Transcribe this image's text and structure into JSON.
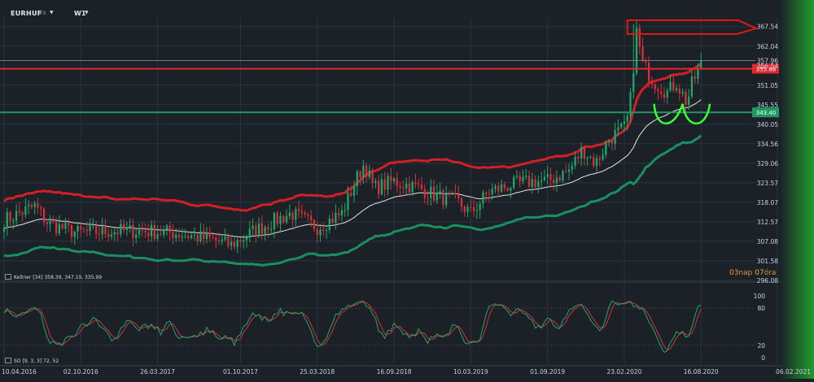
{
  "header": {
    "symbol": "EURHUF",
    "exchange": "FX",
    "timeframe": "W1"
  },
  "legends": {
    "keltner": "Keltner [34] 358.39, 347.19, 335.99",
    "stochastic": "SO [9, 3, 3] 72, 52"
  },
  "countdown": {
    "weeks": "03",
    "weeks_unit": "nap",
    "hours": "07",
    "hours_unit": "óra"
  },
  "colors": {
    "background": "#1b2127",
    "candle_up": "#1fa86a",
    "candle_down": "#d6303c",
    "keltner_upper": "#d31f26",
    "keltner_middle": "#e6e6e6",
    "keltner_lower": "#1a8f61",
    "resistance": "#e0282e",
    "support": "#1d9b63",
    "annotation": "#39ff39",
    "stoch_k": "#1fa86a",
    "stoch_d": "#d6303c",
    "side_gradient": "#1f9d2b"
  },
  "chart_data": [
    {
      "type": "candlestick",
      "ylim": [
        296.08,
        370.0
      ],
      "y_ticks": [
        "367.54",
        "362.04",
        "357.96",
        "356.54",
        "351.05",
        "345.55",
        "340.05",
        "334.56",
        "329.06",
        "323.57",
        "318.07",
        "312.57",
        "307.08",
        "301.58",
        "296.08"
      ],
      "x_ticks": [
        "10.04.2016",
        "02.10.2016",
        "26.03.2017",
        "01.10.2017",
        "25.03.2018",
        "16.09.2018",
        "10.03.2019",
        "01.09.2019",
        "23.02.2020",
        "16.08.2020",
        "06.02.2021"
      ],
      "x_range": [
        "2016-04-10",
        "2021-02-06"
      ],
      "horizontal_levels": [
        {
          "label": "355.68",
          "value": 355.68,
          "color": "resistance"
        },
        {
          "label": "343.40",
          "value": 343.4,
          "color": "support"
        }
      ],
      "current_price": {
        "label": "357.96",
        "value": 357.96
      },
      "path": [
        [
          "2016-04-10",
          313
        ],
        [
          "2016-06-20",
          317
        ],
        [
          "2016-07-20",
          312
        ],
        [
          "2016-09-25",
          309.5
        ],
        [
          "2016-12-15",
          310
        ],
        [
          "2017-02-20",
          310
        ],
        [
          "2017-04-30",
          309.5
        ],
        [
          "2017-07-30",
          307.5
        ],
        [
          "2017-09-10",
          306
        ],
        [
          "2017-11-01",
          310
        ],
        [
          "2017-12-20",
          313
        ],
        [
          "2018-01-25",
          315
        ],
        [
          "2018-03-25",
          311
        ],
        [
          "2018-05-20",
          315
        ],
        [
          "2018-06-20",
          324
        ],
        [
          "2018-07-10",
          329
        ],
        [
          "2018-08-01",
          322
        ],
        [
          "2018-09-16",
          324
        ],
        [
          "2018-11-15",
          322
        ],
        [
          "2018-12-20",
          320
        ],
        [
          "2019-02-10",
          318
        ],
        [
          "2019-03-10",
          315
        ],
        [
          "2019-04-20",
          321
        ],
        [
          "2019-06-10",
          323
        ],
        [
          "2019-08-01",
          324
        ],
        [
          "2019-09-01",
          324
        ],
        [
          "2019-10-20",
          327
        ],
        [
          "2019-11-20",
          333
        ],
        [
          "2019-12-20",
          329
        ],
        [
          "2020-01-20",
          336
        ],
        [
          "2020-02-23",
          339
        ],
        [
          "2020-03-05",
          343
        ],
        [
          "2020-03-22",
          366
        ],
        [
          "2020-04-05",
          357
        ],
        [
          "2020-05-01",
          352
        ],
        [
          "2020-06-01",
          349
        ],
        [
          "2020-06-20",
          352
        ],
        [
          "2020-07-15",
          346
        ],
        [
          "2020-07-25",
          351
        ],
        [
          "2020-08-16",
          357
        ]
      ],
      "keltner": {
        "upper_last": 358.39,
        "middle_last": 347.19,
        "lower_last": 335.99
      },
      "annotations": [
        "resistance-box",
        "double-bottom-arcs"
      ]
    },
    {
      "type": "line",
      "name": "stochastic",
      "ylim": [
        0,
        100
      ],
      "y_ticks": [
        "100",
        "80",
        "20",
        "0"
      ]
    }
  ]
}
